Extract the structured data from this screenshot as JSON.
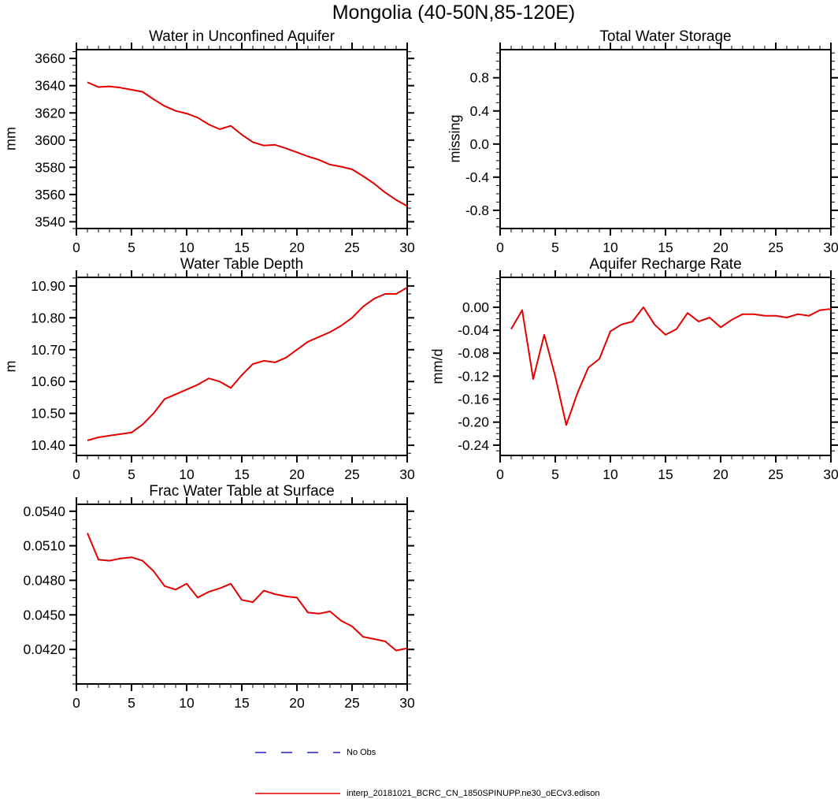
{
  "page": {
    "title": "Mongolia (40-50N,85-120E)"
  },
  "accent": {
    "line_red": "#e50000",
    "no_obs_blue": "#2020c8"
  },
  "chart_data": [
    {
      "type": "line",
      "title": "Water in Unconfined Aquifer",
      "ylabel": "mm",
      "xlim": [
        0,
        30
      ],
      "ylim": [
        3535,
        3666.5
      ],
      "xticks": {
        "values": [
          0,
          5,
          10,
          15,
          20,
          25,
          30
        ],
        "labels": [
          "0",
          "5",
          "10",
          "15",
          "20",
          "25",
          "30"
        ]
      },
      "yticks": {
        "values": [
          3540,
          3560,
          3580,
          3600,
          3620,
          3640,
          3660
        ],
        "labels": [
          "3540",
          "3560",
          "3580",
          "3600",
          "3620",
          "3640",
          "3660"
        ]
      },
      "xminor": 1,
      "yminor": 5,
      "grid": false,
      "series": [
        {
          "name": "interp_20181021_BCRC_CN_1850SPINUPP.ne30_oECv3.edison",
          "color": "#e50000",
          "x_start": 1,
          "x_step": 1,
          "values": [
            3642.5,
            3639,
            3639.5,
            3638.5,
            3637,
            3635.5,
            3630,
            3625,
            3621.5,
            3619.5,
            3616.5,
            3611.5,
            3608,
            3610.5,
            3604,
            3598.5,
            3596,
            3596.5,
            3594,
            3591,
            3588,
            3585.5,
            3582,
            3580.5,
            3578.5,
            3573.5,
            3568,
            3561.5,
            3556,
            3551.5
          ]
        }
      ]
    },
    {
      "type": "line",
      "title": "Total Water Storage",
      "ylabel": "missing",
      "xlim": [
        0,
        30
      ],
      "ylim": [
        -1.02,
        1.14
      ],
      "xticks": {
        "values": [
          0,
          5,
          10,
          15,
          20,
          25,
          30
        ],
        "labels": [
          "0",
          "5",
          "10",
          "15",
          "20",
          "25",
          "30"
        ]
      },
      "yticks": {
        "values": [
          -0.8,
          -0.4,
          0,
          0.4,
          0.8
        ],
        "labels": [
          "-0.8",
          "-0.4",
          "0.0",
          "0.4",
          "0.8"
        ]
      },
      "xminor": 1,
      "yminor": 0.1,
      "grid": false,
      "series": []
    },
    {
      "type": "line",
      "title": "Water Table Depth",
      "ylabel": "m",
      "xlim": [
        0,
        30
      ],
      "ylim": [
        10.368,
        10.927
      ],
      "xticks": {
        "values": [
          0,
          5,
          10,
          15,
          20,
          25,
          30
        ],
        "labels": [
          "0",
          "5",
          "10",
          "15",
          "20",
          "25",
          "30"
        ]
      },
      "yticks": {
        "values": [
          10.4,
          10.5,
          10.6,
          10.7,
          10.8,
          10.9
        ],
        "labels": [
          "10.40",
          "10.50",
          "10.60",
          "10.70",
          "10.80",
          "10.90"
        ]
      },
      "xminor": 1,
      "yminor": 0.025,
      "grid": false,
      "series": [
        {
          "name": "interp_20181021_BCRC_CN_1850SPINUPP.ne30_oECv3.edison",
          "color": "#e50000",
          "x_start": 1,
          "x_step": 1,
          "values": [
            10.415,
            10.425,
            10.43,
            10.435,
            10.44,
            10.465,
            10.5,
            10.545,
            10.56,
            10.575,
            10.59,
            10.61,
            10.6,
            10.58,
            10.62,
            10.655,
            10.665,
            10.66,
            10.675,
            10.7,
            10.725,
            10.74,
            10.755,
            10.775,
            10.8,
            10.835,
            10.86,
            10.875,
            10.875,
            10.895
          ]
        }
      ]
    },
    {
      "type": "line",
      "title": "Aquifer Recharge Rate",
      "ylabel": "mm/d",
      "xlim": [
        0,
        30
      ],
      "ylim": [
        -0.258,
        0.052
      ],
      "xticks": {
        "values": [
          0,
          5,
          10,
          15,
          20,
          25,
          30
        ],
        "labels": [
          "0",
          "5",
          "10",
          "15",
          "20",
          "25",
          "30"
        ]
      },
      "yticks": {
        "values": [
          0,
          -0.04,
          -0.08,
          -0.12,
          -0.16,
          -0.2,
          -0.24
        ],
        "labels": [
          "0.00",
          "-0.04",
          "-0.08",
          "-0.12",
          "-0.16",
          "-0.20",
          "-0.24"
        ]
      },
      "xminor": 1,
      "yminor": 0.01,
      "grid": false,
      "series": [
        {
          "name": "interp_20181021_BCRC_CN_1850SPINUPP.ne30_oECv3.edison",
          "color": "#e50000",
          "x_start": 1,
          "x_step": 1,
          "values": [
            -0.038,
            -0.005,
            -0.125,
            -0.048,
            -0.12,
            -0.205,
            -0.15,
            -0.105,
            -0.09,
            -0.042,
            -0.03,
            -0.025,
            0.0,
            -0.03,
            -0.048,
            -0.038,
            -0.01,
            -0.025,
            -0.018,
            -0.035,
            -0.022,
            -0.012,
            -0.012,
            -0.015,
            -0.015,
            -0.018,
            -0.012,
            -0.015,
            -0.005,
            -0.003
          ]
        }
      ]
    },
    {
      "type": "line",
      "title": "Frac Water Table at Surface",
      "ylabel": "",
      "xlim": [
        0,
        30
      ],
      "ylim": [
        0.039,
        0.0546
      ],
      "xticks": {
        "values": [
          0,
          5,
          10,
          15,
          20,
          25,
          30
        ],
        "labels": [
          "0",
          "5",
          "10",
          "15",
          "20",
          "25",
          "30"
        ]
      },
      "yticks": {
        "values": [
          0.042,
          0.045,
          0.048,
          0.051,
          0.054
        ],
        "labels": [
          "0.0420",
          "0.0450",
          "0.0480",
          "0.0510",
          "0.0540"
        ]
      },
      "xminor": 1,
      "yminor": 0.00075,
      "grid": false,
      "series": [
        {
          "name": "interp_20181021_BCRC_CN_1850SPINUPP.ne30_oECv3.edison",
          "color": "#e50000",
          "x_start": 1,
          "x_step": 1,
          "values": [
            0.0521,
            0.0498,
            0.0497,
            0.0499,
            0.05,
            0.0497,
            0.0488,
            0.0475,
            0.0472,
            0.0477,
            0.0465,
            0.047,
            0.0473,
            0.0477,
            0.0463,
            0.0461,
            0.0471,
            0.0468,
            0.0466,
            0.0465,
            0.0452,
            0.0451,
            0.0453,
            0.0445,
            0.044,
            0.0431,
            0.0429,
            0.0427,
            0.0419,
            0.0421
          ]
        }
      ]
    }
  ],
  "legend": {
    "position": "bottom",
    "items": [
      {
        "label": "No Obs",
        "color": "#2020c8",
        "style": "dashed"
      },
      {
        "label": "interp_20181021_BCRC_CN_1850SPINUPP.ne30_oECv3.edison",
        "color": "#e50000",
        "style": "solid"
      }
    ]
  }
}
